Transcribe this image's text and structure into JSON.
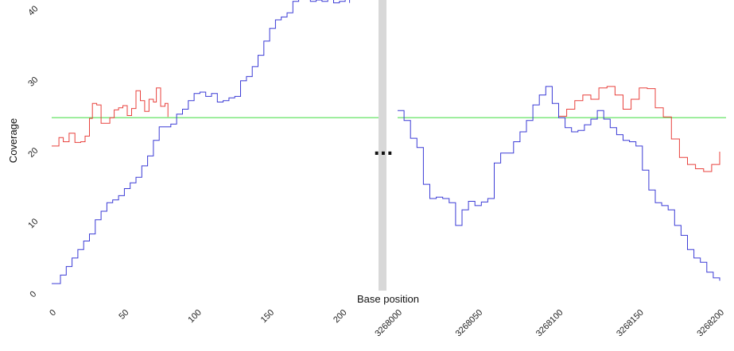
{
  "chart_data": {
    "type": "line",
    "xlabel": "Base position",
    "ylabel": "Coverage",
    "ylim": [
      0,
      41
    ],
    "y_ticks": [
      0,
      10,
      20,
      30,
      40
    ],
    "break_marker": "...",
    "grid": false,
    "colors": {
      "red": "#e8413c",
      "blue": "#3b3bd6",
      "green": "#3cdc3c",
      "separator": "#d8d8d8"
    },
    "panels": [
      {
        "x_range": [
          0,
          220
        ],
        "x_ticks": [
          0,
          50,
          100,
          150,
          200
        ],
        "series": [
          {
            "color": "red",
            "x": [
              0,
              3,
              5,
              8,
              12,
              16,
              20,
              23,
              26,
              28,
              31,
              34,
              37,
              40,
              43,
              46,
              49,
              52,
              55,
              58,
              61,
              64,
              67,
              70,
              72,
              75,
              78,
              80
            ],
            "y": [
              20.4,
              20.4,
              21.6,
              21.0,
              22.2,
              20.9,
              21.0,
              21.8,
              24.3,
              26.4,
              26.2,
              23.6,
              23.6,
              24.4,
              25.5,
              25.8,
              26.1,
              24.7,
              25.7,
              28.2,
              26.8,
              25.3,
              27.0,
              26.6,
              28.6,
              26.0,
              26.4,
              24.5
            ]
          },
          {
            "color": "blue",
            "x": [
              0,
              3,
              6,
              10,
              14,
              18,
              22,
              26,
              30,
              34,
              38,
              42,
              46,
              50,
              54,
              58,
              62,
              66,
              70,
              74,
              78,
              82,
              86,
              90,
              94,
              98,
              102,
              106,
              110,
              114,
              118,
              122,
              126,
              130,
              134,
              138,
              142,
              146,
              150,
              154,
              158,
              162,
              166,
              170,
              174,
              178,
              182,
              186,
              190,
              194,
              198,
              202,
              205
            ],
            "y": [
              1.0,
              1.0,
              2.2,
              3.4,
              4.6,
              5.8,
              7.0,
              8.0,
              10.0,
              11.2,
              12.4,
              12.8,
              13.4,
              14.4,
              15.2,
              16.0,
              17.6,
              19.0,
              21.2,
              23.1,
              23.1,
              23.5,
              24.9,
              25.6,
              26.8,
              27.8,
              28.0,
              27.4,
              27.8,
              26.6,
              26.8,
              27.2,
              27.4,
              29.6,
              30.2,
              31.6,
              33.2,
              35.2,
              37.0,
              38.2,
              38.6,
              39.2,
              40.8,
              41.3,
              41.1,
              40.8,
              41.0,
              40.8,
              41.2,
              40.6,
              40.8,
              41.1,
              40.6
            ]
          }
        ],
        "reference_line": 24.4
      },
      {
        "x_range": [
          3268000,
          3268200
        ],
        "x_ticks": [
          3268000,
          3268050,
          3268100,
          3268150,
          3268200
        ],
        "series": [
          {
            "color": "red",
            "x": [
              3268100,
              3268105,
              3268110,
              3268115,
              3268120,
              3268125,
              3268130,
              3268135,
              3268140,
              3268145,
              3268150,
              3268155,
              3268160,
              3268165,
              3268170,
              3268175,
              3268180,
              3268185,
              3268190,
              3268195,
              3268200
            ],
            "y": [
              24.6,
              25.6,
              26.8,
              27.6,
              27.0,
              28.6,
              28.8,
              27.6,
              25.6,
              27.0,
              28.6,
              28.5,
              25.8,
              24.5,
              21.4,
              18.8,
              17.8,
              17.2,
              16.8,
              17.8,
              19.6
            ]
          },
          {
            "color": "blue",
            "x": [
              3268000,
              3268004,
              3268008,
              3268012,
              3268016,
              3268020,
              3268024,
              3268028,
              3268032,
              3268036,
              3268040,
              3268044,
              3268048,
              3268052,
              3268056,
              3268060,
              3268064,
              3268068,
              3268072,
              3268076,
              3268080,
              3268084,
              3268088,
              3268092,
              3268096,
              3268100,
              3268104,
              3268108,
              3268112,
              3268116,
              3268120,
              3268124,
              3268128,
              3268132,
              3268136,
              3268140,
              3268144,
              3268148,
              3268152,
              3268156,
              3268160,
              3268164,
              3268168,
              3268172,
              3268176,
              3268180,
              3268184,
              3268188,
              3268192,
              3268196,
              3268200
            ],
            "y": [
              25.4,
              24.0,
              21.5,
              20.2,
              15.0,
              13.0,
              13.2,
              13.0,
              12.4,
              9.2,
              11.4,
              12.6,
              12.0,
              12.5,
              13.0,
              18.0,
              19.4,
              19.4,
              21.0,
              22.4,
              24.0,
              26.2,
              27.6,
              28.8,
              26.4,
              24.4,
              23.0,
              22.4,
              22.6,
              23.4,
              24.2,
              25.4,
              24.2,
              23.0,
              22.0,
              21.2,
              21.0,
              20.4,
              17.0,
              14.2,
              12.4,
              12.0,
              11.4,
              9.2,
              7.8,
              5.8,
              4.6,
              4.0,
              2.6,
              1.8,
              1.4
            ]
          }
        ],
        "reference_line": 24.4
      }
    ]
  }
}
